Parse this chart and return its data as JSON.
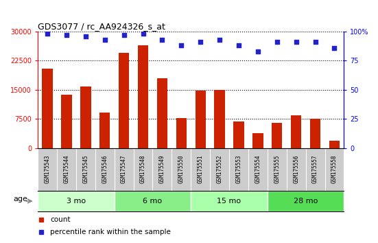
{
  "title": "GDS3077 / rc_AA924326_s_at",
  "samples": [
    "GSM175543",
    "GSM175544",
    "GSM175545",
    "GSM175546",
    "GSM175547",
    "GSM175548",
    "GSM175549",
    "GSM175550",
    "GSM175551",
    "GSM175552",
    "GSM175553",
    "GSM175554",
    "GSM175555",
    "GSM175556",
    "GSM175557",
    "GSM175558"
  ],
  "counts": [
    20500,
    13800,
    15800,
    9200,
    24500,
    26500,
    18000,
    7800,
    14800,
    15000,
    6800,
    3800,
    6500,
    8500,
    7500,
    2000
  ],
  "percentile_ranks": [
    98,
    97,
    96,
    93,
    97,
    98,
    93,
    88,
    91,
    93,
    88,
    83,
    91,
    91,
    91,
    86
  ],
  "bar_color": "#cc2200",
  "dot_color": "#2222cc",
  "ylim_left": [
    0,
    30000
  ],
  "ylim_right": [
    0,
    100
  ],
  "yticks_left": [
    0,
    7500,
    15000,
    22500,
    30000
  ],
  "yticks_right": [
    0,
    25,
    50,
    75,
    100
  ],
  "dotted_lines": [
    7500,
    15000,
    22500,
    30000
  ],
  "age_groups": [
    {
      "label": "3 mo",
      "start": 0,
      "end": 3,
      "color": "#ccffcc"
    },
    {
      "label": "6 mo",
      "start": 4,
      "end": 7,
      "color": "#88ee88"
    },
    {
      "label": "15 mo",
      "start": 8,
      "end": 11,
      "color": "#aaffaa"
    },
    {
      "label": "28 mo",
      "start": 12,
      "end": 15,
      "color": "#55dd55"
    }
  ],
  "age_label": "age",
  "legend_count": "count",
  "legend_percentile": "percentile rank within the sample",
  "plot_bg": "#ffffff",
  "label_cell_bg": "#cccccc",
  "dot_size": 18,
  "bar_width": 0.55
}
